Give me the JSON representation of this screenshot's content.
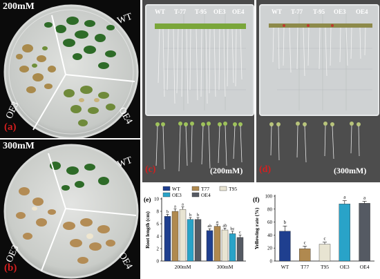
{
  "panel_a": {
    "letter": "(a)",
    "concentration": "200mM",
    "sectors": [
      "WT",
      "OE3",
      "OE4"
    ]
  },
  "panel_b": {
    "letter": "(b)",
    "concentration": "300mM",
    "sectors": [
      "WT",
      "OE3",
      "OE4"
    ]
  },
  "panel_c": {
    "letter": "(c)",
    "concentration": "(200mM)",
    "lines": [
      "WT",
      "T-77",
      "T-95",
      "OE3",
      "OE4"
    ]
  },
  "panel_d": {
    "letter": "(d)",
    "concentration": "(300mM)",
    "lines": [
      "WT",
      "T-77",
      "T-95",
      "OE3",
      "OE4"
    ]
  },
  "legend": [
    "WT",
    "T77",
    "T95",
    "OE3",
    "OE4"
  ],
  "colors": {
    "WT": "#1f3f8f",
    "T77": "#b0894f",
    "T95": "#e8e4d2",
    "OE3": "#29a3c8",
    "OE4": "#555a63",
    "letter_red": "#d31f1f"
  },
  "chart_data": [
    {
      "type": "bar",
      "panel": "(e)",
      "ylabel": "Root length (cm)",
      "ylim": [
        0,
        10
      ],
      "yticks": [
        0,
        2,
        4,
        6,
        8,
        10
      ],
      "categories": [
        "200mM",
        "300mM"
      ],
      "series": [
        {
          "name": "WT",
          "values": [
            7.2,
            4.9
          ],
          "errors": [
            0.3,
            0.3
          ],
          "sig": [
            "b",
            "ab"
          ]
        },
        {
          "name": "T77",
          "values": [
            8.0,
            5.6
          ],
          "errors": [
            0.4,
            0.3
          ],
          "sig": [
            "a",
            "a"
          ]
        },
        {
          "name": "T95",
          "values": [
            8.3,
            5.0
          ],
          "errors": [
            0.4,
            0.3
          ],
          "sig": [
            "a",
            "ab"
          ]
        },
        {
          "name": "OE3",
          "values": [
            6.7,
            4.4
          ],
          "errors": [
            0.3,
            0.4
          ],
          "sig": [
            "b",
            "bc"
          ]
        },
        {
          "name": "OE4",
          "values": [
            6.7,
            3.8
          ],
          "errors": [
            0.3,
            0.4
          ],
          "sig": [
            "b",
            "c"
          ]
        }
      ]
    },
    {
      "type": "bar",
      "panel": "(f)",
      "ylabel": "Yellowing rate (%)",
      "ylim": [
        0,
        100
      ],
      "yticks": [
        0,
        20,
        40,
        60,
        80,
        100
      ],
      "categories": [
        "WT",
        "T77",
        "T95",
        "OE3",
        "OE4"
      ],
      "values": [
        46,
        19,
        26,
        88,
        89
      ],
      "errors": [
        8,
        4,
        3,
        5,
        3
      ],
      "sig": [
        "b",
        "c",
        "c",
        "a",
        "a"
      ]
    }
  ]
}
